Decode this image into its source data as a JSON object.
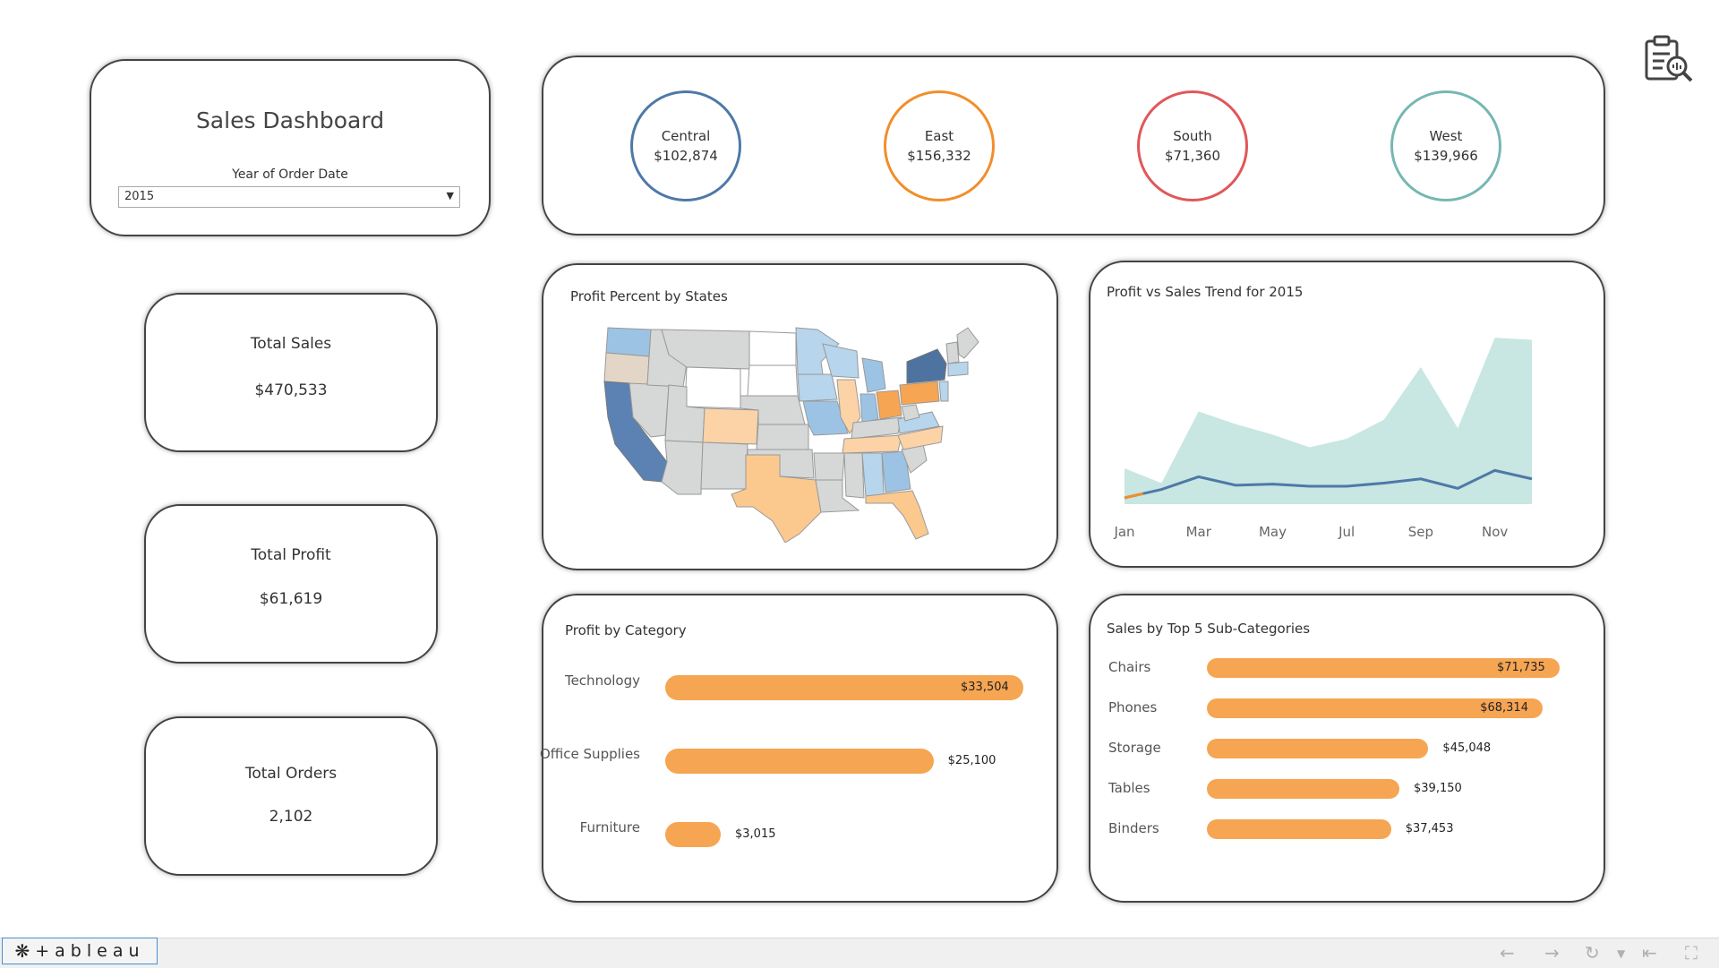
{
  "header": {
    "title": "Sales Dashboard",
    "filter_label": "Year of Order Date",
    "filter_value": "2015"
  },
  "regions": [
    {
      "name": "Central",
      "value": "$102,874",
      "color": "#4e79a7"
    },
    {
      "name": "East",
      "value": "$156,332",
      "color": "#f28e2b"
    },
    {
      "name": "South",
      "value": "$71,360",
      "color": "#e15759"
    },
    {
      "name": "West",
      "value": "$139,966",
      "color": "#76b7b2"
    }
  ],
  "kpis": {
    "sales": {
      "label": "Total Sales",
      "value": "$470,533"
    },
    "profit": {
      "label": "Total Profit",
      "value": "$61,619"
    },
    "orders": {
      "label": "Total Orders",
      "value": "2,102"
    }
  },
  "map": {
    "title": "Profit Percent by States"
  },
  "trend": {
    "title": "Profit vs Sales Trend for 2015"
  },
  "category": {
    "title": "Profit by Category"
  },
  "subcategory": {
    "title": "Sales by Top 5 Sub-Categories"
  },
  "chart_data": [
    {
      "type": "area",
      "title": "Profit vs Sales Trend for 2015",
      "x": [
        "Jan",
        "Feb",
        "Mar",
        "Apr",
        "May",
        "Jun",
        "Jul",
        "Aug",
        "Sep",
        "Oct",
        "Nov",
        "Dec"
      ],
      "x_tick_labels": [
        "Jan",
        "Mar",
        "May",
        "Jul",
        "Sep",
        "Nov"
      ],
      "series": [
        {
          "values": [
            12000,
            5000,
            39000,
            33000,
            28000,
            22000,
            26000,
            35000,
            60000,
            31000,
            74000,
            73000
          ],
          "color": "#c8e6e2",
          "kind": "area"
        },
        {
          "values": [
            -2000,
            2000,
            8000,
            4000,
            4500,
            3500,
            3500,
            5000,
            7000,
            2500,
            11000,
            7000
          ],
          "color": "#4e79a7",
          "kind": "line"
        }
      ],
      "ylim": [
        -5000,
        80000
      ]
    },
    {
      "type": "bar",
      "title": "Profit by Category",
      "categories": [
        "Technology",
        "Office Supplies",
        "Furniture"
      ],
      "values": [
        33504,
        25100,
        3015
      ],
      "labels": [
        "$33,504",
        "$25,100",
        "$3,015"
      ],
      "color": "#f6a552"
    },
    {
      "type": "bar",
      "title": "Sales by Top 5 Sub-Categories",
      "categories": [
        "Chairs",
        "Phones",
        "Storage",
        "Tables",
        "Binders"
      ],
      "values": [
        71735,
        68314,
        45048,
        39150,
        37453
      ],
      "labels": [
        "$71,735",
        "$68,314",
        "$45,048",
        "$39,150",
        "$37,453"
      ],
      "color": "#f6a552"
    }
  ],
  "footer": {
    "brand": "+ableau"
  },
  "icons": {
    "report": "report-search-icon",
    "back": "undo-icon",
    "forward": "redo-icon",
    "replay": "replay-icon",
    "first": "go-to-start-icon",
    "fullscreen": "fullscreen-icon"
  }
}
